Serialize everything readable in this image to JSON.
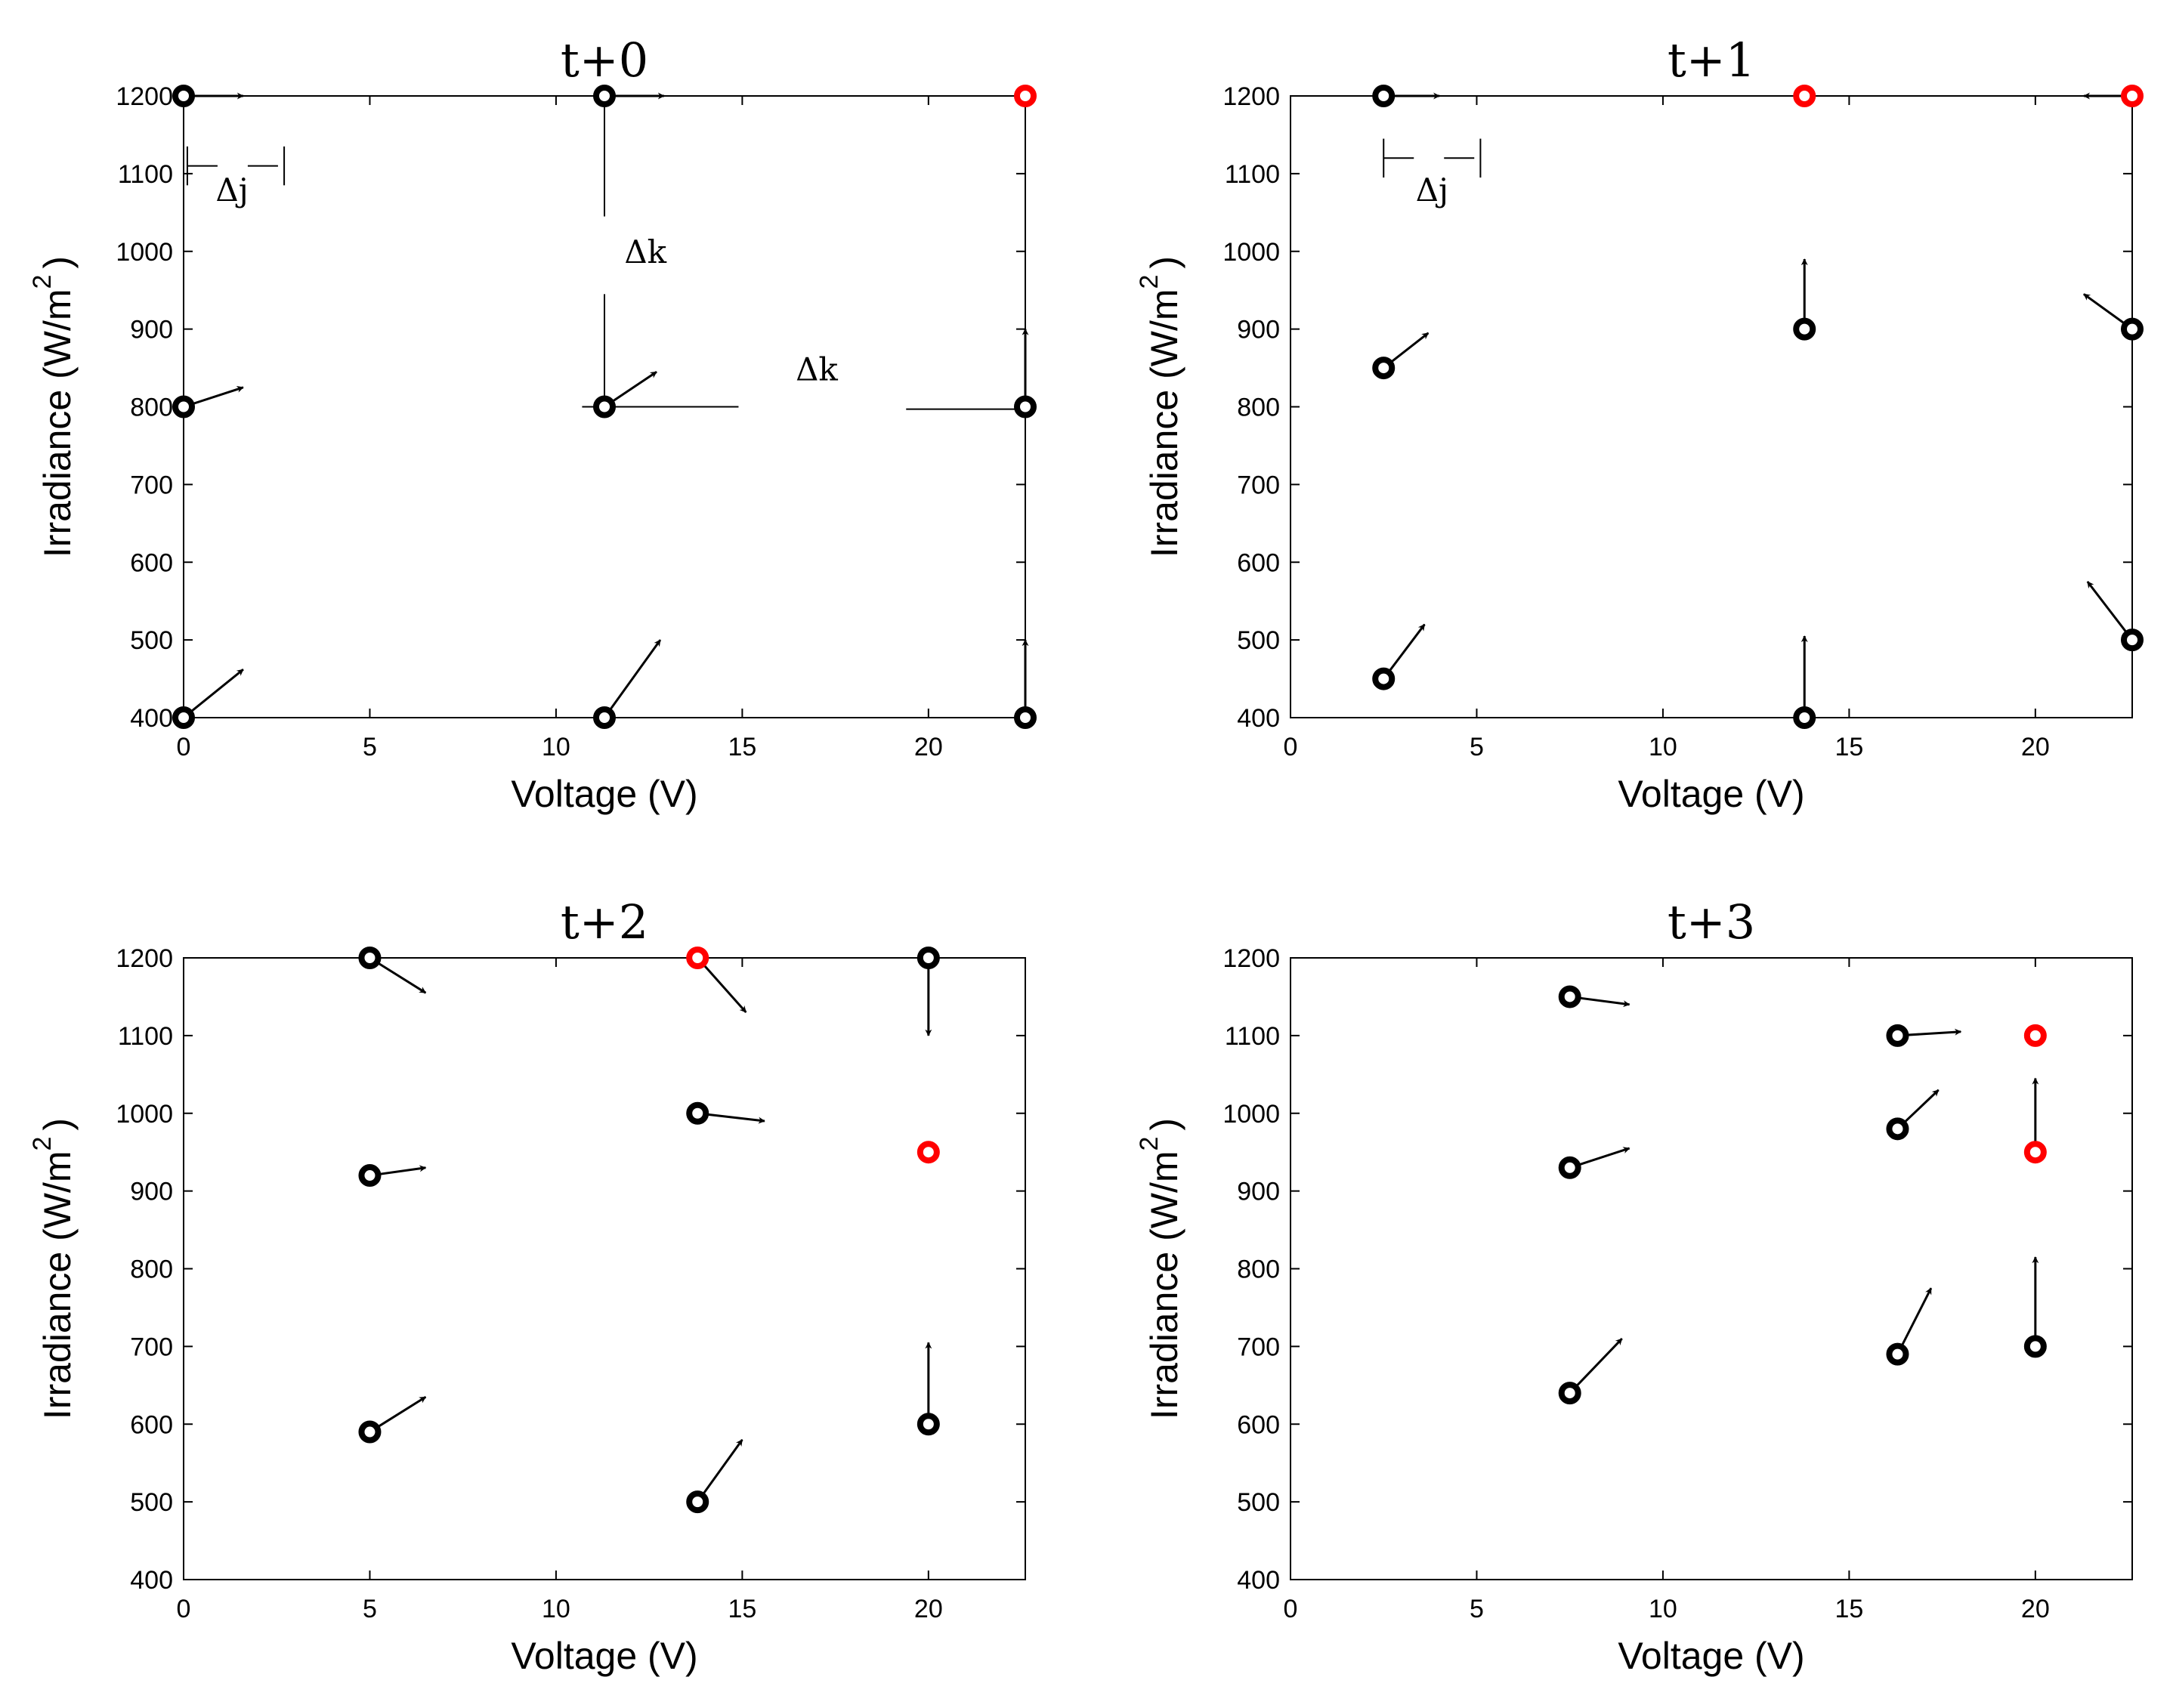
{
  "figure": {
    "contour_colors": [
      "#3b2fb8",
      "#3d5fdc",
      "#2f8ed8",
      "#22aac6",
      "#2fbf9a",
      "#7cc86a",
      "#c9b42a",
      "#e8c81a",
      "#f5e51a"
    ],
    "point_color": "#000000",
    "best_color": "#ff0000",
    "arrow_color": "#000000"
  },
  "chart_data": [
    {
      "type": "scatter",
      "title": "t+0",
      "xlabel": "Voltage (V)",
      "ylabel": "Irradiance (W/m",
      "ylabel_sup": "2",
      "ylabel_close": ")",
      "xlim": [
        0,
        22.6
      ],
      "ylim": [
        400,
        1200
      ],
      "xticks": [
        "0",
        "5",
        "10",
        "15",
        "20"
      ],
      "yticks": [
        "400",
        "500",
        "600",
        "700",
        "800",
        "900",
        "1000",
        "1100",
        "1200"
      ],
      "particles": [
        {
          "x": 0,
          "y": 1200,
          "dx": 1.6,
          "dy": 0,
          "best": false
        },
        {
          "x": 0,
          "y": 800,
          "dx": 1.6,
          "dy": 25,
          "best": false
        },
        {
          "x": 0,
          "y": 400,
          "dx": 1.6,
          "dy": 62,
          "best": false
        },
        {
          "x": 11.3,
          "y": 1200,
          "dx": 1.6,
          "dy": 0,
          "best": false
        },
        {
          "x": 11.3,
          "y": 800,
          "dx": 1.4,
          "dy": 45,
          "best": false
        },
        {
          "x": 11.3,
          "y": 400,
          "dx": 1.5,
          "dy": 100,
          "best": false
        },
        {
          "x": 22.6,
          "y": 1200,
          "dx": 0,
          "dy": 0,
          "best": true
        },
        {
          "x": 22.6,
          "y": 800,
          "dx": 0,
          "dy": 100,
          "best": false
        },
        {
          "x": 22.6,
          "y": 400,
          "dx": 0,
          "dy": 100,
          "best": false
        }
      ],
      "annotations": [
        {
          "text": "Δj",
          "x": 1.3,
          "y": 1065
        },
        {
          "text": "Δk",
          "x": 12.4,
          "y": 985
        },
        {
          "text": "Δk",
          "x": 17.0,
          "y": 834
        }
      ]
    },
    {
      "type": "scatter",
      "title": "t+1",
      "xlabel": "Voltage (V)",
      "ylabel": "Irradiance (W/m",
      "ylabel_sup": "2",
      "ylabel_close": ")",
      "xlim": [
        0,
        22.6
      ],
      "ylim": [
        400,
        1200
      ],
      "xticks": [
        "0",
        "5",
        "10",
        "15",
        "20"
      ],
      "yticks": [
        "400",
        "500",
        "600",
        "700",
        "800",
        "900",
        "1000",
        "1100",
        "1200"
      ],
      "particles": [
        {
          "x": 2.5,
          "y": 1200,
          "dx": 1.5,
          "dy": 0,
          "best": false
        },
        {
          "x": 2.5,
          "y": 850,
          "dx": 1.2,
          "dy": 45,
          "best": false
        },
        {
          "x": 2.5,
          "y": 450,
          "dx": 1.1,
          "dy": 70,
          "best": false
        },
        {
          "x": 13.8,
          "y": 1200,
          "dx": 0,
          "dy": 0,
          "best": true
        },
        {
          "x": 13.8,
          "y": 900,
          "dx": 0,
          "dy": 90,
          "best": false
        },
        {
          "x": 13.8,
          "y": 400,
          "dx": 0,
          "dy": 105,
          "best": false
        },
        {
          "x": 22.6,
          "y": 1200,
          "dx": -1.3,
          "dy": 0,
          "best": true
        },
        {
          "x": 22.6,
          "y": 900,
          "dx": -1.3,
          "dy": 45,
          "best": false
        },
        {
          "x": 22.6,
          "y": 500,
          "dx": -1.2,
          "dy": 75,
          "best": false
        }
      ],
      "annotations": [
        {
          "text": "Δj",
          "x": 3.8,
          "y": 1065
        }
      ]
    },
    {
      "type": "scatter",
      "title": "t+2",
      "xlabel": "Voltage (V)",
      "ylabel": "Irradiance (W/m",
      "ylabel_sup": "2",
      "ylabel_close": ")",
      "xlim": [
        0,
        22.6
      ],
      "ylim": [
        400,
        1200
      ],
      "xticks": [
        "0",
        "5",
        "10",
        "15",
        "20"
      ],
      "yticks": [
        "400",
        "500",
        "600",
        "700",
        "800",
        "900",
        "1000",
        "1100",
        "1200"
      ],
      "particles": [
        {
          "x": 5.0,
          "y": 1200,
          "dx": 1.5,
          "dy": -45,
          "best": false
        },
        {
          "x": 5.0,
          "y": 920,
          "dx": 1.5,
          "dy": 10,
          "best": false
        },
        {
          "x": 5.0,
          "y": 590,
          "dx": 1.5,
          "dy": 45,
          "best": false
        },
        {
          "x": 13.8,
          "y": 1200,
          "dx": 1.3,
          "dy": -70,
          "best": true
        },
        {
          "x": 13.8,
          "y": 1000,
          "dx": 1.8,
          "dy": -10,
          "best": false
        },
        {
          "x": 13.8,
          "y": 500,
          "dx": 1.2,
          "dy": 80,
          "best": false
        },
        {
          "x": 20.0,
          "y": 1200,
          "dx": 0,
          "dy": -100,
          "best": false
        },
        {
          "x": 20.0,
          "y": 950,
          "dx": 0,
          "dy": 0,
          "best": true
        },
        {
          "x": 20.0,
          "y": 600,
          "dx": 0,
          "dy": 105,
          "best": false
        }
      ],
      "annotations": []
    },
    {
      "type": "scatter",
      "title": "t+3",
      "xlabel": "Voltage (V)",
      "ylabel": "Irradiance (W/m",
      "ylabel_sup": "2",
      "ylabel_close": ")",
      "xlim": [
        0,
        22.6
      ],
      "ylim": [
        400,
        1200
      ],
      "xticks": [
        "0",
        "5",
        "10",
        "15",
        "20"
      ],
      "yticks": [
        "400",
        "500",
        "600",
        "700",
        "800",
        "900",
        "1000",
        "1100",
        "1200"
      ],
      "particles": [
        {
          "x": 7.5,
          "y": 1150,
          "dx": 1.6,
          "dy": -10,
          "best": false
        },
        {
          "x": 7.5,
          "y": 930,
          "dx": 1.6,
          "dy": 25,
          "best": false
        },
        {
          "x": 7.5,
          "y": 640,
          "dx": 1.4,
          "dy": 70,
          "best": false
        },
        {
          "x": 16.3,
          "y": 1100,
          "dx": 1.7,
          "dy": 5,
          "best": false
        },
        {
          "x": 16.3,
          "y": 980,
          "dx": 1.1,
          "dy": 50,
          "best": false
        },
        {
          "x": 16.3,
          "y": 690,
          "dx": 0.9,
          "dy": 85,
          "best": false
        },
        {
          "x": 20.0,
          "y": 1100,
          "dx": 0,
          "dy": 0,
          "best": true
        },
        {
          "x": 20.0,
          "y": 950,
          "dx": 0,
          "dy": 95,
          "best": true
        },
        {
          "x": 20.0,
          "y": 700,
          "dx": 0,
          "dy": 115,
          "best": false
        }
      ],
      "annotations": []
    }
  ]
}
